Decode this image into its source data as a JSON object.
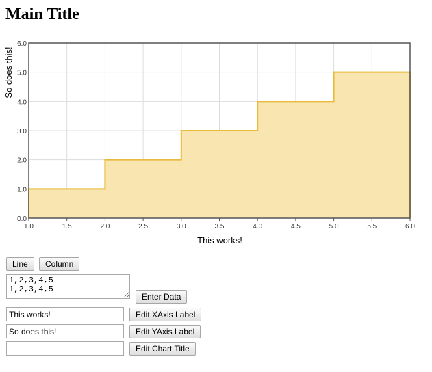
{
  "page": {
    "title": "Main Title"
  },
  "chart_data": {
    "type": "area",
    "step": true,
    "x": [
      1,
      2,
      3,
      4,
      5,
      6
    ],
    "series": [
      {
        "values": [
          1,
          2,
          3,
          4,
          5,
          5
        ]
      }
    ],
    "title": "",
    "xlabel": "This works!",
    "ylabel": "So does this!",
    "xlim": [
      1,
      6
    ],
    "ylim": [
      0,
      6
    ],
    "xticks": [
      "1.0",
      "1.5",
      "2.0",
      "2.5",
      "3.0",
      "3.5",
      "4.0",
      "4.5",
      "5.0",
      "5.5",
      "6.0"
    ],
    "yticks": [
      "0.0",
      "1.0",
      "2.0",
      "3.0",
      "4.0",
      "5.0",
      "6.0"
    ],
    "grid": true,
    "fill_color": "#f9e5b0",
    "line_color": "#e8bb3a"
  },
  "controls": {
    "line_button": "Line",
    "column_button": "Column",
    "data_text": "1,2,3,4,5\n1,2,3,4,5",
    "enter_data_button": "Enter Data",
    "xaxis_value": "This works!",
    "edit_xaxis_button": "Edit XAxis Label",
    "yaxis_value": "So does this!",
    "edit_yaxis_button": "Edit YAxis Label",
    "title_value": "",
    "edit_title_button": "Edit Chart Title"
  }
}
